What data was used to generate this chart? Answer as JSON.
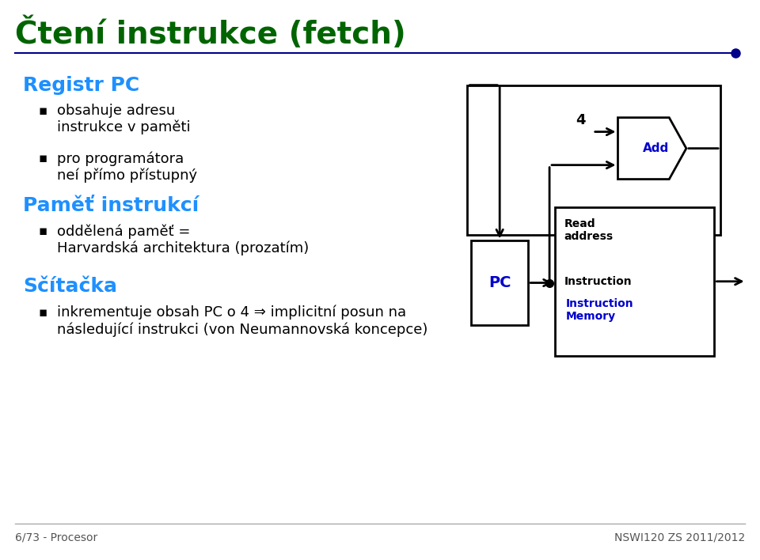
{
  "title": "Čtení instrukce (fetch)",
  "title_color": "#006400",
  "title_fontsize": 28,
  "bg_color": "#ffffff",
  "header_line_color": "#00008B",
  "header_dot_color": "#00008B",
  "text_color": "#000000",
  "blue_color": "#0000CD",
  "bullet_color": "#000000",
  "sections": [
    {
      "heading": "Registr PC",
      "heading_color": "#1E90FF",
      "items": [
        "obsahuje adresu\ninstrukce v paměti",
        "pro programátora\nneí přímo přístupný"
      ]
    },
    {
      "heading": "Paměť instrukcí",
      "heading_color": "#1E90FF",
      "items": [
        "oddělená paměť =\nHarvardská architektura (prozatím)"
      ]
    },
    {
      "heading": "Sčítačka",
      "heading_color": "#1E90FF",
      "items": [
        "inkrementuje obsah PC o 4 ⇒ implicitní posun na\nnásledující instrukci (von Neumannovská koncepce)"
      ]
    }
  ],
  "footer_left": "6/73 - Procesor",
  "footer_right": "NSWI120 ZS 2011/2012"
}
